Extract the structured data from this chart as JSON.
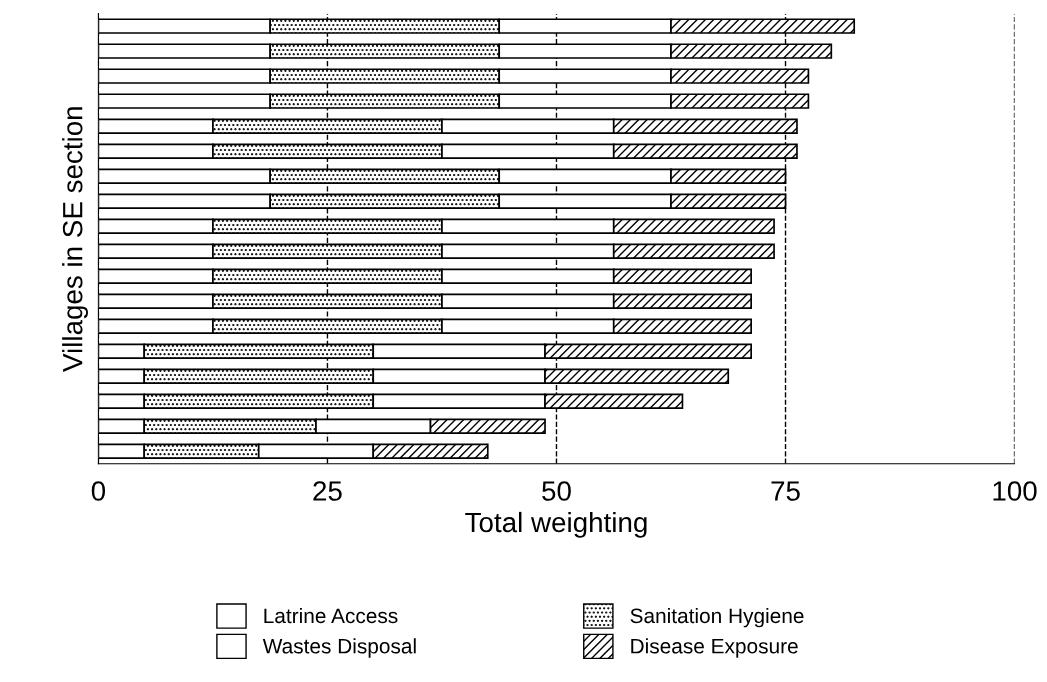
{
  "chart_data": {
    "type": "bar",
    "orientation": "horizontal",
    "stacked": true,
    "xlabel": "Total weighting",
    "ylabel": "Villages in SE section",
    "categories": [
      null,
      null,
      null,
      null,
      null,
      null,
      null,
      null,
      null,
      null,
      null,
      null,
      null,
      null,
      null,
      null,
      null,
      null
    ],
    "series": [
      {
        "name": "Latrine Access",
        "color": "#ffffff",
        "values": [
          18.75,
          18.75,
          18.75,
          18.75,
          12.5,
          12.5,
          18.75,
          18.75,
          12.5,
          12.5,
          12.5,
          12.5,
          12.5,
          5,
          5,
          5,
          5,
          5
        ]
      },
      {
        "name": "Sanitation Hygiene",
        "color": "#000000",
        "values": [
          25,
          25,
          25,
          25,
          25,
          25,
          25,
          25,
          25,
          25,
          25,
          25,
          25,
          25,
          25,
          25,
          18.75,
          12.5
        ]
      },
      {
        "name": "Wastes Disposal",
        "color": "#ffffff",
        "values": [
          18.75,
          18.75,
          18.75,
          18.75,
          18.75,
          18.75,
          18.75,
          18.75,
          18.75,
          18.75,
          18.75,
          18.75,
          18.75,
          18.75,
          18.75,
          18.75,
          12.5,
          12.5
        ]
      },
      {
        "name": "Disease Exposure",
        "color": "#000000",
        "values": [
          20,
          17.5,
          15,
          15,
          20,
          20,
          12.5,
          12.5,
          17.5,
          17.5,
          15,
          15,
          15,
          22.5,
          20,
          15,
          12.5,
          12.5
        ]
      }
    ],
    "xlim": [
      0,
      100
    ],
    "xticks": [
      0,
      25,
      50,
      75,
      100
    ],
    "grid": "x",
    "line_style": "dashed",
    "legend": "bottom"
  }
}
